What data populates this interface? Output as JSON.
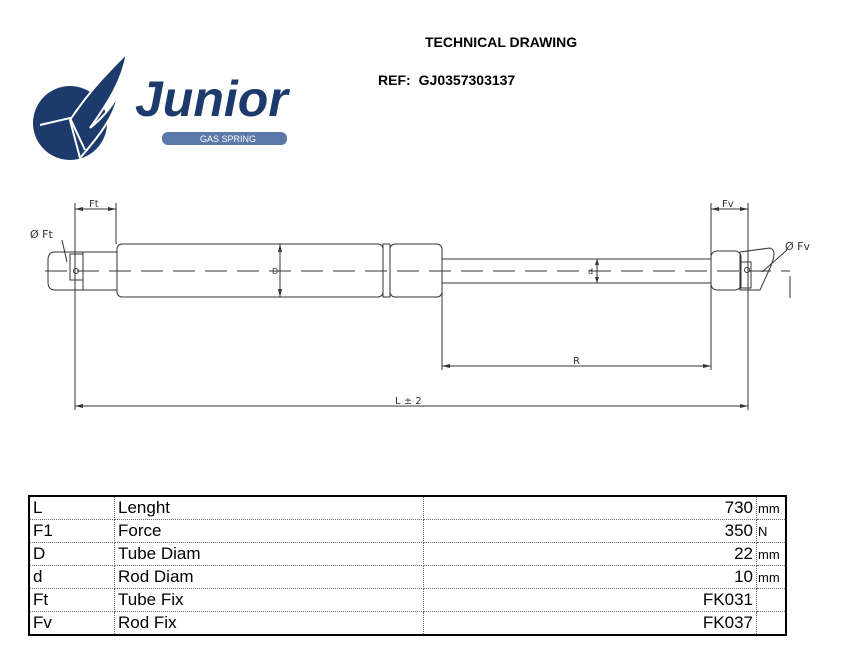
{
  "header": {
    "title": "TECHNICAL DRAWING",
    "ref_label": "REF:",
    "ref_value": "GJ0357303137"
  },
  "logo": {
    "brand": "Junior",
    "tagline": "GAS SPRING",
    "color": "#1c3a6b"
  },
  "drawing": {
    "labels": {
      "ft_dim": "Ft",
      "ft_diam": "Ø Ft",
      "fv_dim": "Fv",
      "fv_diam": "Ø Fv",
      "tube_diam": "D",
      "rod_diam": "d",
      "stroke": "R",
      "length": "L ± 2"
    }
  },
  "specs": {
    "rows": [
      {
        "symbol": "L",
        "name": "Lenght",
        "value": "730",
        "unit": "mm"
      },
      {
        "symbol": "F1",
        "name": "Force",
        "value": "350",
        "unit": "N"
      },
      {
        "symbol": "D",
        "name": "Tube Diam",
        "value": "22",
        "unit": "mm"
      },
      {
        "symbol": "d",
        "name": "Rod Diam",
        "value": "10",
        "unit": "mm"
      },
      {
        "symbol": "Ft",
        "name": "Tube Fix",
        "value": "FK031",
        "unit": ""
      },
      {
        "symbol": "Fv",
        "name": "Rod Fix",
        "value": "FK037",
        "unit": ""
      }
    ]
  }
}
